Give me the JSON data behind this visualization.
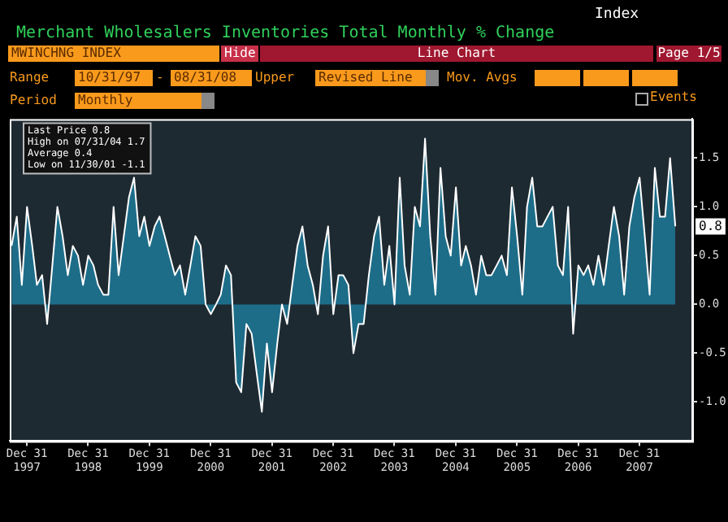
{
  "chart_data": {
    "type": "area",
    "title": "Merchant Wholesalers Inventories Total Monthly % Change",
    "x": [
      "1997-10",
      "1997-11",
      "1997-12",
      "1998-01",
      "1998-02",
      "1998-03",
      "1998-04",
      "1998-05",
      "1998-06",
      "1998-07",
      "1998-08",
      "1998-09",
      "1998-10",
      "1998-11",
      "1998-12",
      "1999-01",
      "1999-02",
      "1999-03",
      "1999-04",
      "1999-05",
      "1999-06",
      "1999-07",
      "1999-08",
      "1999-09",
      "1999-10",
      "1999-11",
      "1999-12",
      "2000-01",
      "2000-02",
      "2000-03",
      "2000-04",
      "2000-05",
      "2000-06",
      "2000-07",
      "2000-08",
      "2000-09",
      "2000-10",
      "2000-11",
      "2000-12",
      "2001-01",
      "2001-02",
      "2001-03",
      "2001-04",
      "2001-05",
      "2001-06",
      "2001-07",
      "2001-08",
      "2001-09",
      "2001-10",
      "2001-11",
      "2001-12",
      "2002-01",
      "2002-02",
      "2002-03",
      "2002-04",
      "2002-05",
      "2002-06",
      "2002-07",
      "2002-08",
      "2002-09",
      "2002-10",
      "2002-11",
      "2002-12",
      "2003-01",
      "2003-02",
      "2003-03",
      "2003-04",
      "2003-05",
      "2003-06",
      "2003-07",
      "2003-08",
      "2003-09",
      "2003-10",
      "2003-11",
      "2003-12",
      "2004-01",
      "2004-02",
      "2004-03",
      "2004-04",
      "2004-05",
      "2004-06",
      "2004-07",
      "2004-08",
      "2004-09",
      "2004-10",
      "2004-11",
      "2004-12",
      "2005-01",
      "2005-02",
      "2005-03",
      "2005-04",
      "2005-05",
      "2005-06",
      "2005-07",
      "2005-08",
      "2005-09",
      "2005-10",
      "2005-11",
      "2005-12",
      "2006-01",
      "2006-02",
      "2006-03",
      "2006-04",
      "2006-05",
      "2006-06",
      "2006-07",
      "2006-08",
      "2006-09",
      "2006-10",
      "2006-11",
      "2006-12",
      "2007-01",
      "2007-02",
      "2007-03",
      "2007-04",
      "2007-05",
      "2007-06",
      "2007-07",
      "2007-08",
      "2007-09",
      "2007-10",
      "2007-11",
      "2007-12",
      "2008-01",
      "2008-02",
      "2008-03",
      "2008-04",
      "2008-05",
      "2008-06",
      "2008-07",
      "2008-08"
    ],
    "series": [
      {
        "color": "#1d6d89",
        "values": [
          0.6,
          0.9,
          0.2,
          1.0,
          0.6,
          0.2,
          0.3,
          -0.2,
          0.4,
          1.0,
          0.7,
          0.3,
          0.6,
          0.5,
          0.2,
          0.5,
          0.4,
          0.2,
          0.1,
          0.1,
          1.0,
          0.3,
          0.7,
          1.1,
          1.3,
          0.7,
          0.9,
          0.6,
          0.8,
          0.9,
          0.7,
          0.5,
          0.3,
          0.4,
          0.1,
          0.4,
          0.7,
          0.6,
          0.0,
          -0.1,
          0.0,
          0.1,
          0.4,
          0.3,
          -0.8,
          -0.9,
          -0.2,
          -0.3,
          -0.7,
          -1.1,
          -0.4,
          -0.9,
          -0.4,
          0.0,
          -0.2,
          0.2,
          0.6,
          0.8,
          0.4,
          0.2,
          -0.1,
          0.5,
          0.8,
          -0.1,
          0.3,
          0.3,
          0.2,
          -0.5,
          -0.2,
          -0.2,
          0.3,
          0.7,
          0.9,
          0.2,
          0.6,
          0.0,
          1.3,
          0.4,
          0.1,
          1.0,
          0.8,
          1.7,
          0.7,
          0.1,
          1.4,
          0.7,
          0.5,
          1.2,
          0.4,
          0.6,
          0.4,
          0.1,
          0.5,
          0.3,
          0.3,
          0.4,
          0.5,
          0.3,
          1.2,
          0.7,
          0.1,
          1.0,
          1.3,
          0.8,
          0.8,
          0.9,
          1.0,
          0.4,
          0.3,
          1.0,
          -0.3,
          0.4,
          0.3,
          0.4,
          0.2,
          0.5,
          0.2,
          0.6,
          1.0,
          0.7,
          0.1,
          0.8,
          1.1,
          1.3,
          0.7,
          0.1,
          1.4,
          0.9,
          0.9,
          1.5,
          0.8
        ]
      }
    ],
    "xlim": [
      "1997-09-20",
      "2008-11-10"
    ],
    "xticks": [
      {
        "value": "1997-12-31",
        "label": "Dec 31 1997"
      },
      {
        "value": "1998-12-31",
        "label": "Dec 31 1998"
      },
      {
        "value": "1999-12-31",
        "label": "Dec 31 1999"
      },
      {
        "value": "2000-12-31",
        "label": "Dec 31 2000"
      },
      {
        "value": "2001-12-31",
        "label": "Dec 31 2001"
      },
      {
        "value": "2002-12-31",
        "label": "Dec 31 2002"
      },
      {
        "value": "2003-12-31",
        "label": "Dec 31 2003"
      },
      {
        "value": "2004-12-31",
        "label": "Dec 31 2004"
      },
      {
        "value": "2005-12-31",
        "label": "Dec 31 2005"
      },
      {
        "value": "2006-12-31",
        "label": "Dec 31 2006"
      },
      {
        "value": "2007-12-31",
        "label": "Dec 31 2007"
      }
    ],
    "ylim": [
      -1.4,
      1.9
    ],
    "yticks": [
      {
        "value": -1,
        "label": "-1.0"
      },
      {
        "value": -0.5,
        "label": "-0.5"
      },
      {
        "value": 0,
        "label": "0.0"
      },
      {
        "value": 0.5,
        "label": "0.5"
      },
      {
        "value": 1,
        "label": "1.0"
      },
      {
        "value": 1.5,
        "label": "1.5"
      }
    ],
    "marker": "none",
    "line_style": "solid",
    "grid": false,
    "legend": false,
    "annotations": [
      "Last Price 0.8",
      "High on 07/31/04 1.7",
      "Average 0.4",
      "Low on 11/30/01 -1.1",
      {
        "text": "0.8",
        "x": "2008-08",
        "y": 0.8
      },
      "MWINCHNG INDEX",
      "Hide",
      "Line Chart",
      "Page 1/5",
      "Range",
      "10/31/97",
      "-",
      "08/31/08",
      "Upper",
      "Revised Line",
      "Mov. Avgs",
      "Period",
      "Monthly",
      "Events",
      "Index"
    ]
  }
}
